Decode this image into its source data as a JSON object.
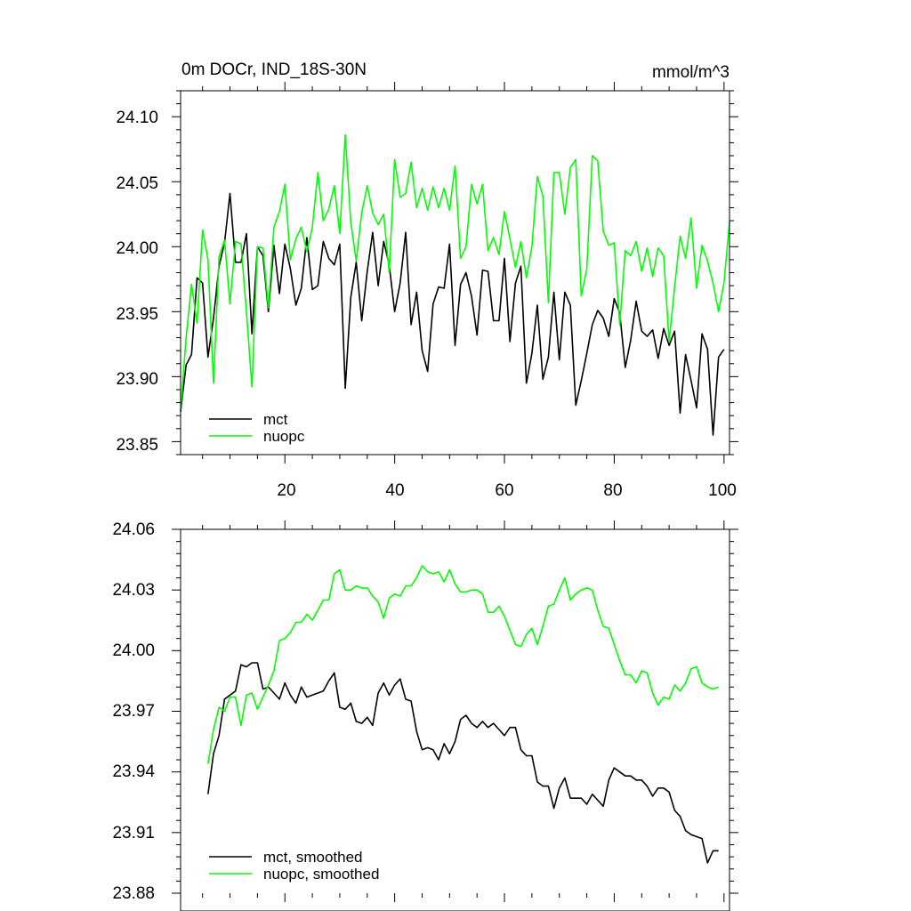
{
  "chart_data": [
    {
      "type": "line",
      "title": "0m DOCr, IND_18S-30N",
      "units": "mmol/m^3",
      "xlim": [
        1,
        101
      ],
      "ylim": [
        23.84,
        24.12
      ],
      "yticks": [
        "24.10",
        "24.05",
        "24.00",
        "23.95",
        "23.90",
        "23.85"
      ],
      "xticks": [
        "20",
        "40",
        "60",
        "80",
        "100"
      ],
      "legend_position": "bottom-left",
      "series": [
        {
          "name": "mct",
          "color": "#000000",
          "x_start": 1,
          "values": [
            23.873,
            23.909,
            23.917,
            23.976,
            23.972,
            23.915,
            23.945,
            23.985,
            24.003,
            24.041,
            23.988,
            23.988,
            24.01,
            23.933,
            24.0,
            23.993,
            23.95,
            24.001,
            23.964,
            24.002,
            23.983,
            23.955,
            23.968,
            24.007,
            23.967,
            23.97,
            24.004,
            23.991,
            23.986,
            24.002,
            23.891,
            23.961,
            23.988,
            23.943,
            23.981,
            24.011,
            23.97,
            24.004,
            23.986,
            23.95,
            23.972,
            24.011,
            23.94,
            23.965,
            23.92,
            23.904,
            23.956,
            23.969,
            23.968,
            24.002,
            23.924,
            23.971,
            23.98,
            23.962,
            23.932,
            23.982,
            23.981,
            23.943,
            23.943,
            23.991,
            23.927,
            23.972,
            23.985,
            23.895,
            23.918,
            23.955,
            23.898,
            23.915,
            23.965,
            23.913,
            23.965,
            23.955,
            23.878,
            23.897,
            23.918,
            23.94,
            23.951,
            23.945,
            23.931,
            23.96,
            23.949,
            23.907,
            23.928,
            23.958,
            23.935,
            23.931,
            23.936,
            23.914,
            23.937,
            23.924,
            23.935,
            23.872,
            23.917,
            23.897,
            23.876,
            23.933,
            23.921,
            23.855,
            23.915,
            23.921
          ]
        },
        {
          "name": "nuopc",
          "color": "#00ff00",
          "x_start": 1,
          "values": [
            23.874,
            23.93,
            23.971,
            23.941,
            24.013,
            23.99,
            23.895,
            23.992,
            24.005,
            23.956,
            24.004,
            24.002,
            23.95,
            23.892,
            24.0,
            23.999,
            23.953,
            24.015,
            24.027,
            24.048,
            23.99,
            24.006,
            24.015,
            23.996,
            24.015,
            24.057,
            24.02,
            24.029,
            24.047,
            24.01,
            24.086,
            24.019,
            23.989,
            24.026,
            24.047,
            24.026,
            24.017,
            24.025,
            23.98,
            24.067,
            24.038,
            24.041,
            24.065,
            24.03,
            24.045,
            24.028,
            24.046,
            24.03,
            24.045,
            24.028,
            24.062,
            23.991,
            24.0,
            24.048,
            24.033,
            24.048,
            23.997,
            24.007,
            23.994,
            24.027,
            24.006,
            23.984,
            24.004,
            23.976,
            24.0,
            24.054,
            24.039,
            23.957,
            24.057,
            24.057,
            24.025,
            24.061,
            24.067,
            23.962,
            23.983,
            24.07,
            24.066,
            24.012,
            24.001,
            24.003,
            23.94,
            23.997,
            23.993,
            24.004,
            23.981,
            23.999,
            23.977,
            23.999,
            23.993,
            23.927,
            23.969,
            24.008,
            23.991,
            24.022,
            23.968,
            24.001,
            23.989,
            23.972,
            23.95,
            23.972,
            24.019
          ]
        }
      ]
    },
    {
      "type": "line",
      "title": "",
      "ylim": [
        23.88,
        24.06
      ],
      "yticks": [
        "24.06",
        "24.03",
        "24.00",
        "23.97",
        "23.94",
        "23.91",
        "23.88"
      ],
      "legend_position": "bottom-left",
      "series": [
        {
          "name": "mct, smoothed",
          "color": "#000000",
          "x_start": 6,
          "values": [
            23.929,
            23.949,
            23.958,
            23.976,
            23.978,
            23.98,
            23.993,
            23.992,
            23.994,
            23.994,
            23.981,
            23.982,
            23.979,
            23.976,
            23.984,
            23.978,
            23.974,
            23.982,
            23.977,
            23.978,
            23.979,
            23.98,
            23.985,
            23.989,
            23.972,
            23.971,
            23.974,
            23.965,
            23.964,
            23.967,
            23.963,
            23.979,
            23.984,
            23.978,
            23.983,
            23.986,
            23.976,
            23.975,
            23.96,
            23.951,
            23.952,
            23.951,
            23.946,
            23.954,
            23.949,
            23.955,
            23.966,
            23.968,
            23.964,
            23.962,
            23.965,
            23.962,
            23.964,
            23.961,
            23.958,
            23.962,
            23.962,
            23.951,
            23.948,
            23.948,
            23.935,
            23.933,
            23.933,
            23.922,
            23.932,
            23.937,
            23.927,
            23.927,
            23.927,
            23.924,
            23.929,
            23.926,
            23.923,
            23.936,
            23.942,
            23.94,
            23.938,
            23.938,
            23.936,
            23.936,
            23.933,
            23.928,
            23.932,
            23.932,
            23.93,
            23.921,
            23.918,
            23.911,
            23.909,
            23.908,
            23.907,
            23.895,
            23.901,
            23.901
          ]
        },
        {
          "name": "nuopc, smoothed",
          "color": "#00ff00",
          "x_start": 6,
          "values": [
            23.944,
            23.961,
            23.972,
            23.97,
            23.977,
            23.977,
            23.963,
            23.978,
            23.979,
            23.971,
            23.977,
            23.983,
            23.99,
            24.005,
            24.006,
            24.009,
            24.014,
            24.014,
            24.018,
            24.015,
            24.02,
            24.025,
            24.025,
            24.038,
            24.04,
            24.03,
            24.03,
            24.032,
            24.031,
            24.031,
            24.027,
            24.024,
            24.016,
            24.026,
            24.028,
            24.027,
            24.032,
            24.032,
            24.036,
            24.042,
            24.039,
            24.038,
            24.039,
            24.034,
            24.04,
            24.033,
            24.029,
            24.029,
            24.03,
            24.03,
            24.028,
            24.019,
            24.019,
            24.022,
            24.017,
            24.01,
            24.003,
            24.002,
            24.008,
            24.011,
            24.003,
            24.012,
            24.022,
            24.023,
            24.03,
            24.036,
            24.025,
            24.028,
            24.03,
            24.031,
            24.03,
            24.02,
            24.012,
            24.011,
            24.003,
            23.995,
            23.988,
            23.988,
            23.984,
            23.99,
            23.989,
            23.979,
            23.973,
            23.977,
            23.976,
            23.983,
            23.98,
            23.984,
            23.991,
            23.992,
            23.984,
            23.982,
            23.981,
            23.982
          ]
        }
      ]
    }
  ]
}
